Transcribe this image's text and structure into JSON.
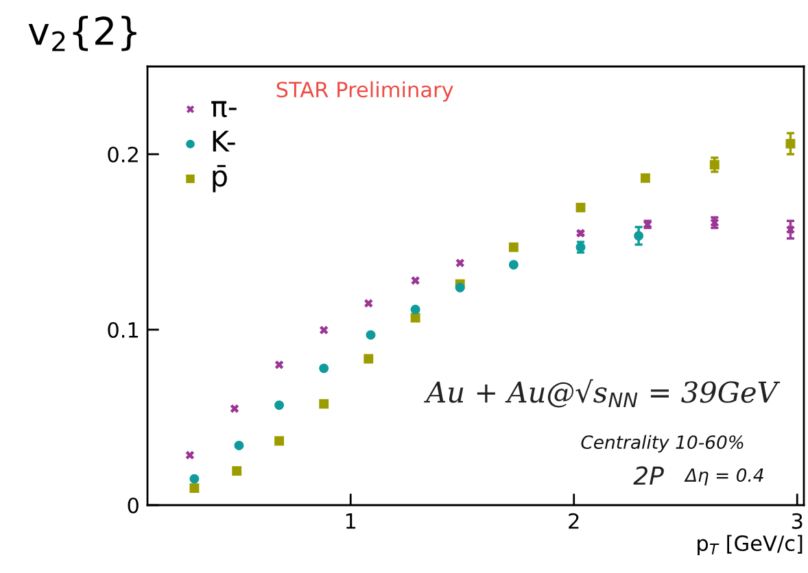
{
  "chart_data": {
    "type": "scatter",
    "title": "v$_{2}${2}",
    "xlabel": "p$_{T}$ [GeV/c]",
    "annotations": [
      "STAR Preliminary",
      "Au + Au@√s$_{NN}$ = 39GeV",
      "Centrality 10-60%",
      "2P",
      "Δη = 0.4"
    ],
    "xlim": [
      0.09,
      3.03
    ],
    "ylim": [
      0,
      0.25
    ],
    "xticks": [
      1,
      2,
      3
    ],
    "yticks": [
      0,
      0.1,
      0.2
    ],
    "grid": false,
    "legend": "top left",
    "series": [
      {
        "name": "π-",
        "color": "#9b3596",
        "marker": "cross",
        "x": [
          0.28,
          0.48,
          0.68,
          0.88,
          1.08,
          1.29,
          1.49,
          1.72,
          2.03,
          2.33,
          2.63,
          2.97
        ],
        "values": [
          0.0285,
          0.055,
          0.08,
          0.0998,
          0.115,
          0.128,
          0.138,
          null,
          0.155,
          0.16,
          0.161,
          0.157
        ],
        "errors": [
          null,
          null,
          null,
          null,
          null,
          null,
          null,
          null,
          0.001,
          0.002,
          0.003,
          0.005
        ]
      },
      {
        "name": "K-",
        "color": "#0f9b9b",
        "marker": "circle",
        "x": [
          0.3,
          0.5,
          0.68,
          0.88,
          1.09,
          1.29,
          1.49,
          1.73,
          2.03,
          2.29
        ],
        "values": [
          0.015,
          0.034,
          0.057,
          0.078,
          0.097,
          0.1115,
          0.124,
          0.137,
          0.147,
          0.1535
        ],
        "errors": [
          null,
          null,
          null,
          null,
          null,
          null,
          null,
          null,
          0.003,
          0.005
        ]
      },
      {
        "name": "p̄",
        "color": "#9c9c00",
        "marker": "square",
        "x": [
          0.3,
          0.49,
          0.68,
          0.88,
          1.08,
          1.29,
          1.49,
          1.73,
          2.03,
          2.32,
          2.63,
          2.97
        ],
        "values": [
          0.0097,
          0.0195,
          0.0366,
          0.0577,
          0.0834,
          0.1068,
          0.126,
          0.147,
          0.1696,
          0.1864,
          0.194,
          0.206
        ],
        "errors": [
          null,
          null,
          null,
          null,
          null,
          null,
          null,
          null,
          null,
          null,
          0.004,
          0.006
        ]
      }
    ]
  }
}
